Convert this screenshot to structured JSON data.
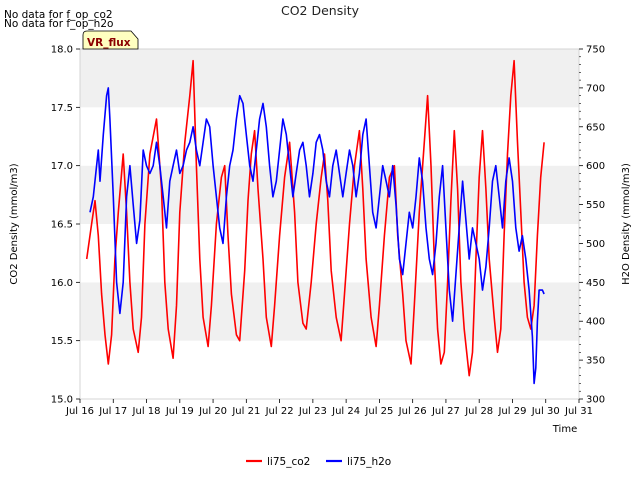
{
  "notices": [
    "No data for f_op_co2",
    "No data for f_op_h2o"
  ],
  "badge": {
    "label": "VR_flux",
    "fill": "#ffffc0",
    "border": "#000000",
    "text_color": "#8b0000"
  },
  "chart_data": {
    "type": "line",
    "title": "CO2 Density",
    "xlabel": "Time",
    "ylabel_left": "CO2 Density (mmol/m3)",
    "ylabel_right": "H2O Density (mmol/m3)",
    "x_ticks": [
      "Jul 16",
      "Jul 17",
      "Jul 18",
      "Jul 19",
      "Jul 20",
      "Jul 21",
      "Jul 22",
      "Jul 23",
      "Jul 24",
      "Jul 25",
      "Jul 26",
      "Jul 27",
      "Jul 28",
      "Jul 29",
      "Jul 30",
      "Jul 31"
    ],
    "xlim": [
      16,
      31
    ],
    "ylim_left": [
      15.0,
      18.0
    ],
    "yticks_left": [
      "15.0",
      "15.5",
      "16.0",
      "16.5",
      "17.0",
      "17.5",
      "18.0"
    ],
    "ylim_right": [
      300,
      750
    ],
    "yticks_right": [
      "300",
      "350",
      "400",
      "450",
      "500",
      "550",
      "600",
      "650",
      "700",
      "750"
    ],
    "background_bands": true,
    "legend_position": "bottom-center",
    "series": [
      {
        "name": "li75_co2",
        "axis": "left",
        "color": "#ff0000",
        "points": [
          [
            16.2,
            16.2
          ],
          [
            16.35,
            16.5
          ],
          [
            16.45,
            16.7
          ],
          [
            16.55,
            16.4
          ],
          [
            16.65,
            15.9
          ],
          [
            16.75,
            15.55
          ],
          [
            16.85,
            15.3
          ],
          [
            16.95,
            15.55
          ],
          [
            17.05,
            16.2
          ],
          [
            17.15,
            16.6
          ],
          [
            17.3,
            17.1
          ],
          [
            17.4,
            16.6
          ],
          [
            17.5,
            16.0
          ],
          [
            17.6,
            15.6
          ],
          [
            17.75,
            15.4
          ],
          [
            17.85,
            15.7
          ],
          [
            17.95,
            16.5
          ],
          [
            18.1,
            17.1
          ],
          [
            18.3,
            17.4
          ],
          [
            18.45,
            16.8
          ],
          [
            18.55,
            16.0
          ],
          [
            18.65,
            15.6
          ],
          [
            18.8,
            15.35
          ],
          [
            18.9,
            15.8
          ],
          [
            19.0,
            16.6
          ],
          [
            19.15,
            17.2
          ],
          [
            19.3,
            17.6
          ],
          [
            19.4,
            17.9
          ],
          [
            19.5,
            17.0
          ],
          [
            19.6,
            16.2
          ],
          [
            19.7,
            15.7
          ],
          [
            19.85,
            15.45
          ],
          [
            19.95,
            15.8
          ],
          [
            20.1,
            16.5
          ],
          [
            20.25,
            16.9
          ],
          [
            20.35,
            17.0
          ],
          [
            20.45,
            16.4
          ],
          [
            20.55,
            15.9
          ],
          [
            20.7,
            15.55
          ],
          [
            20.8,
            15.5
          ],
          [
            20.95,
            16.1
          ],
          [
            21.05,
            16.7
          ],
          [
            21.15,
            17.1
          ],
          [
            21.25,
            17.3
          ],
          [
            21.35,
            16.8
          ],
          [
            21.5,
            16.2
          ],
          [
            21.6,
            15.7
          ],
          [
            21.75,
            15.45
          ],
          [
            21.85,
            15.8
          ],
          [
            22.0,
            16.4
          ],
          [
            22.15,
            16.9
          ],
          [
            22.3,
            17.2
          ],
          [
            22.45,
            16.6
          ],
          [
            22.55,
            16.0
          ],
          [
            22.7,
            15.65
          ],
          [
            22.8,
            15.6
          ],
          [
            22.95,
            16.0
          ],
          [
            23.1,
            16.5
          ],
          [
            23.25,
            16.9
          ],
          [
            23.35,
            17.1
          ],
          [
            23.45,
            16.7
          ],
          [
            23.55,
            16.1
          ],
          [
            23.7,
            15.7
          ],
          [
            23.85,
            15.5
          ],
          [
            23.95,
            15.9
          ],
          [
            24.1,
            16.5
          ],
          [
            24.25,
            17.0
          ],
          [
            24.4,
            17.3
          ],
          [
            24.5,
            16.8
          ],
          [
            24.6,
            16.2
          ],
          [
            24.75,
            15.7
          ],
          [
            24.9,
            15.45
          ],
          [
            25.0,
            15.8
          ],
          [
            25.15,
            16.4
          ],
          [
            25.3,
            16.9
          ],
          [
            25.45,
            17.0
          ],
          [
            25.55,
            16.4
          ],
          [
            25.7,
            15.9
          ],
          [
            25.8,
            15.5
          ],
          [
            25.95,
            15.3
          ],
          [
            26.05,
            15.8
          ],
          [
            26.2,
            16.6
          ],
          [
            26.35,
            17.2
          ],
          [
            26.45,
            17.6
          ],
          [
            26.55,
            17.0
          ],
          [
            26.65,
            16.2
          ],
          [
            26.75,
            15.6
          ],
          [
            26.85,
            15.3
          ],
          [
            26.95,
            15.4
          ],
          [
            27.05,
            16.0
          ],
          [
            27.15,
            16.7
          ],
          [
            27.25,
            17.3
          ],
          [
            27.35,
            16.8
          ],
          [
            27.45,
            16.0
          ],
          [
            27.55,
            15.6
          ],
          [
            27.7,
            15.2
          ],
          [
            27.8,
            15.4
          ],
          [
            27.9,
            16.2
          ],
          [
            28.0,
            16.9
          ],
          [
            28.1,
            17.3
          ],
          [
            28.2,
            16.8
          ],
          [
            28.3,
            16.2
          ],
          [
            28.45,
            15.7
          ],
          [
            28.55,
            15.4
          ],
          [
            28.65,
            15.6
          ],
          [
            28.75,
            16.4
          ],
          [
            28.85,
            17.1
          ],
          [
            28.95,
            17.6
          ],
          [
            29.05,
            17.9
          ],
          [
            29.15,
            17.2
          ],
          [
            29.25,
            16.6
          ],
          [
            29.35,
            16.0
          ],
          [
            29.45,
            15.7
          ],
          [
            29.55,
            15.6
          ],
          [
            29.65,
            15.8
          ],
          [
            29.75,
            16.4
          ],
          [
            29.85,
            16.9
          ],
          [
            29.95,
            17.2
          ]
        ]
      },
      {
        "name": "li75_h2o",
        "axis": "right",
        "color": "#0000ff",
        "points": [
          [
            16.3,
            540
          ],
          [
            16.4,
            560
          ],
          [
            16.5,
            600
          ],
          [
            16.55,
            620
          ],
          [
            16.6,
            580
          ],
          [
            16.7,
            640
          ],
          [
            16.8,
            690
          ],
          [
            16.85,
            700
          ],
          [
            16.9,
            660
          ],
          [
            17.0,
            560
          ],
          [
            17.1,
            450
          ],
          [
            17.2,
            410
          ],
          [
            17.3,
            450
          ],
          [
            17.4,
            560
          ],
          [
            17.5,
            600
          ],
          [
            17.6,
            550
          ],
          [
            17.7,
            500
          ],
          [
            17.8,
            530
          ],
          [
            17.9,
            620
          ],
          [
            18.0,
            600
          ],
          [
            18.1,
            590
          ],
          [
            18.2,
            600
          ],
          [
            18.3,
            630
          ],
          [
            18.4,
            600
          ],
          [
            18.5,
            560
          ],
          [
            18.6,
            520
          ],
          [
            18.7,
            580
          ],
          [
            18.8,
            600
          ],
          [
            18.9,
            620
          ],
          [
            19.0,
            590
          ],
          [
            19.1,
            600
          ],
          [
            19.2,
            620
          ],
          [
            19.3,
            630
          ],
          [
            19.4,
            650
          ],
          [
            19.5,
            620
          ],
          [
            19.6,
            600
          ],
          [
            19.7,
            630
          ],
          [
            19.8,
            660
          ],
          [
            19.9,
            650
          ],
          [
            20.0,
            600
          ],
          [
            20.1,
            560
          ],
          [
            20.2,
            520
          ],
          [
            20.3,
            500
          ],
          [
            20.4,
            560
          ],
          [
            20.5,
            600
          ],
          [
            20.6,
            620
          ],
          [
            20.7,
            660
          ],
          [
            20.8,
            690
          ],
          [
            20.9,
            680
          ],
          [
            21.0,
            640
          ],
          [
            21.1,
            600
          ],
          [
            21.2,
            580
          ],
          [
            21.3,
            620
          ],
          [
            21.4,
            660
          ],
          [
            21.5,
            680
          ],
          [
            21.6,
            650
          ],
          [
            21.7,
            600
          ],
          [
            21.8,
            560
          ],
          [
            21.9,
            580
          ],
          [
            22.0,
            620
          ],
          [
            22.1,
            660
          ],
          [
            22.2,
            640
          ],
          [
            22.3,
            600
          ],
          [
            22.4,
            560
          ],
          [
            22.5,
            590
          ],
          [
            22.6,
            620
          ],
          [
            22.7,
            630
          ],
          [
            22.8,
            600
          ],
          [
            22.9,
            560
          ],
          [
            23.0,
            590
          ],
          [
            23.1,
            630
          ],
          [
            23.2,
            640
          ],
          [
            23.3,
            620
          ],
          [
            23.4,
            580
          ],
          [
            23.5,
            560
          ],
          [
            23.6,
            600
          ],
          [
            23.7,
            620
          ],
          [
            23.8,
            590
          ],
          [
            23.9,
            560
          ],
          [
            24.0,
            590
          ],
          [
            24.1,
            620
          ],
          [
            24.2,
            600
          ],
          [
            24.3,
            560
          ],
          [
            24.4,
            590
          ],
          [
            24.5,
            640
          ],
          [
            24.6,
            660
          ],
          [
            24.7,
            600
          ],
          [
            24.8,
            540
          ],
          [
            24.9,
            520
          ],
          [
            25.0,
            560
          ],
          [
            25.1,
            600
          ],
          [
            25.2,
            580
          ],
          [
            25.3,
            560
          ],
          [
            25.4,
            600
          ],
          [
            25.5,
            550
          ],
          [
            25.6,
            480
          ],
          [
            25.7,
            460
          ],
          [
            25.8,
            500
          ],
          [
            25.9,
            540
          ],
          [
            26.0,
            520
          ],
          [
            26.1,
            560
          ],
          [
            26.2,
            610
          ],
          [
            26.3,
            580
          ],
          [
            26.4,
            520
          ],
          [
            26.5,
            480
          ],
          [
            26.6,
            460
          ],
          [
            26.7,
            500
          ],
          [
            26.8,
            560
          ],
          [
            26.9,
            600
          ],
          [
            27.0,
            520
          ],
          [
            27.1,
            440
          ],
          [
            27.2,
            400
          ],
          [
            27.3,
            460
          ],
          [
            27.4,
            520
          ],
          [
            27.5,
            580
          ],
          [
            27.6,
            530
          ],
          [
            27.7,
            480
          ],
          [
            27.8,
            520
          ],
          [
            27.9,
            500
          ],
          [
            28.0,
            480
          ],
          [
            28.1,
            440
          ],
          [
            28.2,
            470
          ],
          [
            28.3,
            520
          ],
          [
            28.4,
            580
          ],
          [
            28.5,
            600
          ],
          [
            28.6,
            560
          ],
          [
            28.7,
            520
          ],
          [
            28.8,
            580
          ],
          [
            28.9,
            610
          ],
          [
            29.0,
            580
          ],
          [
            29.1,
            520
          ],
          [
            29.2,
            490
          ],
          [
            29.3,
            510
          ],
          [
            29.4,
            480
          ],
          [
            29.5,
            440
          ],
          [
            29.6,
            380
          ],
          [
            29.65,
            320
          ],
          [
            29.7,
            340
          ],
          [
            29.75,
            400
          ],
          [
            29.8,
            440
          ],
          [
            29.9,
            440
          ],
          [
            29.95,
            435
          ]
        ]
      }
    ]
  }
}
